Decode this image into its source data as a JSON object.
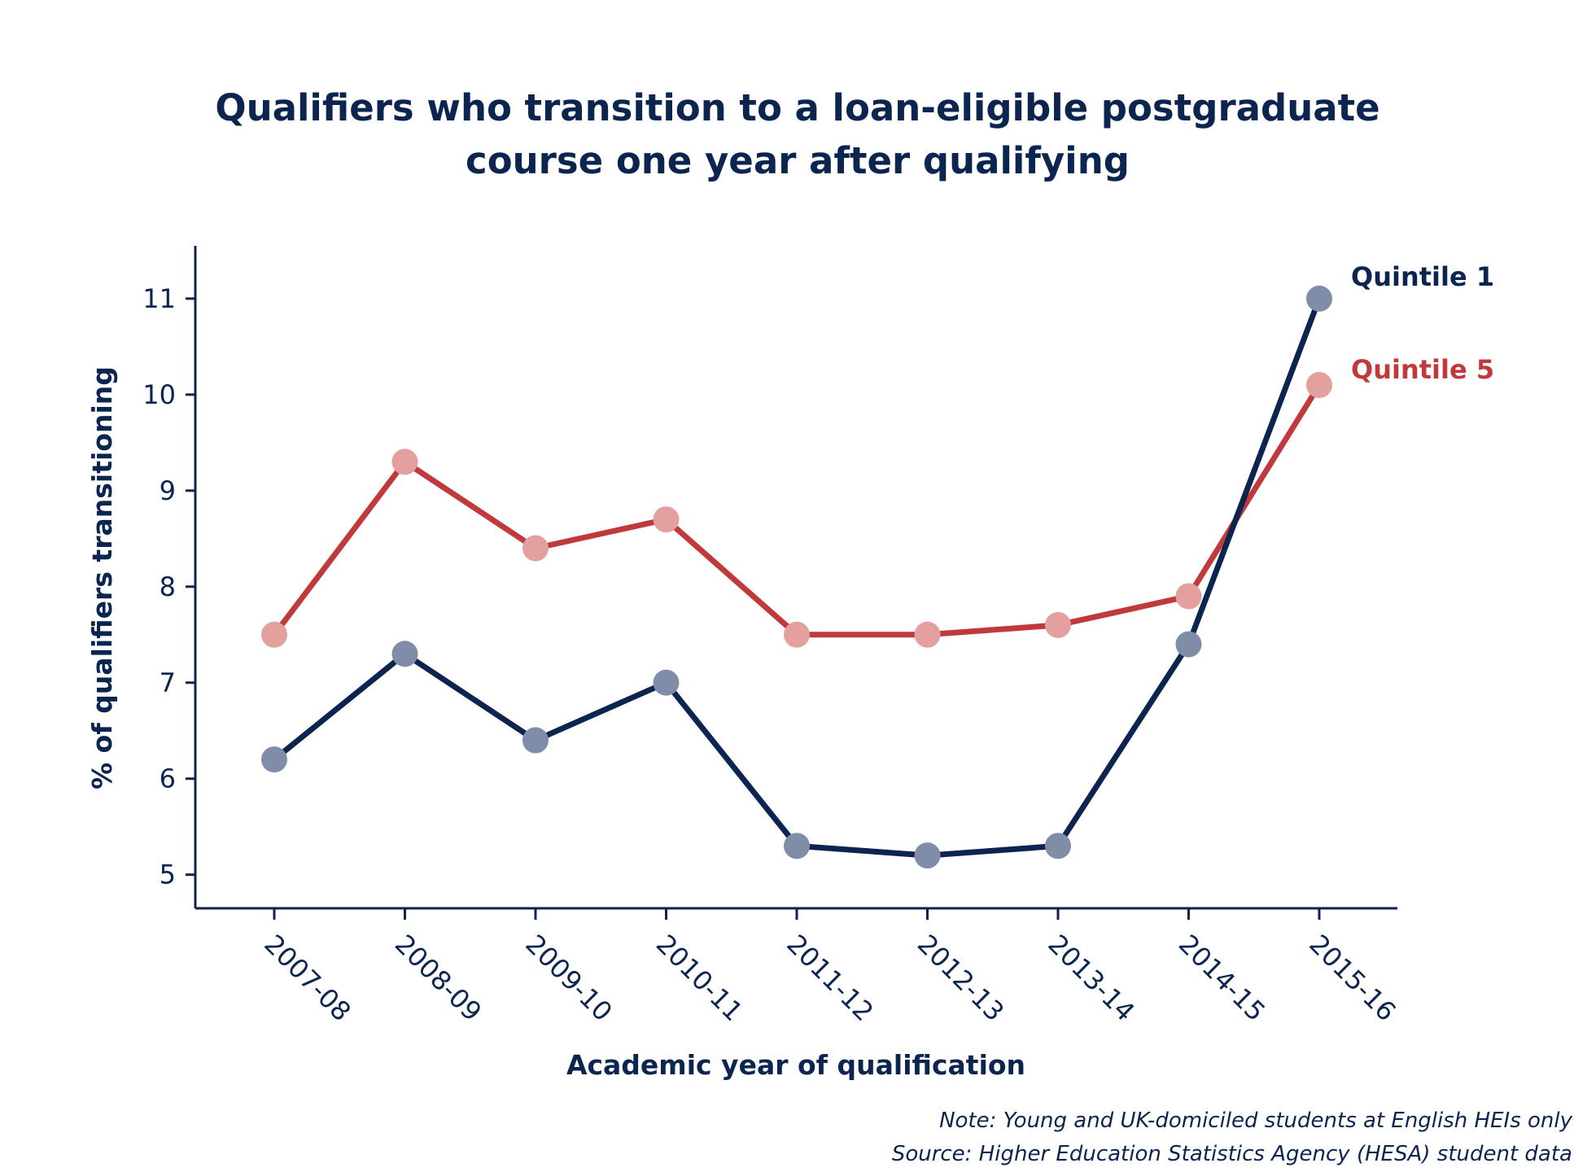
{
  "colors": {
    "text": "#0b2550",
    "axis": "#0b2550",
    "quintile1_line": "#0b2550",
    "quintile1_marker": "#7f8da8",
    "quintile5_line": "#c0393b",
    "quintile5_marker": "#e3a09f"
  },
  "chart_data": {
    "type": "line",
    "title_lines": [
      "Qualifiers who transition to a loan-eligible postgraduate",
      "course one year after qualifying"
    ],
    "xlabel": "Academic year of qualification",
    "ylabel": "% of qualifiers transitioning",
    "categories": [
      "2007-08",
      "2008-09",
      "2009-10",
      "2010-11",
      "2011-12",
      "2012-13",
      "2013-14",
      "2014-15",
      "2015-16"
    ],
    "y_ticks": [
      "5",
      "6",
      "7",
      "8",
      "9",
      "10",
      "11"
    ],
    "ylim": [
      4.65,
      11.55
    ],
    "grid": false,
    "series": [
      {
        "name": "Quintile 1",
        "color": "#0b2550",
        "values": [
          6.2,
          7.3,
          6.4,
          7.0,
          5.3,
          5.2,
          5.3,
          7.4,
          11.0
        ]
      },
      {
        "name": "Quintile 5",
        "color": "#c0393b",
        "values": [
          7.5,
          9.3,
          8.4,
          8.7,
          7.5,
          7.5,
          7.6,
          7.9,
          10.1
        ]
      }
    ],
    "notes": [
      "Note: Young and UK-domiciled students at English HEIs only",
      "Source: Higher Education Statistics Agency (HESA) student data"
    ]
  }
}
